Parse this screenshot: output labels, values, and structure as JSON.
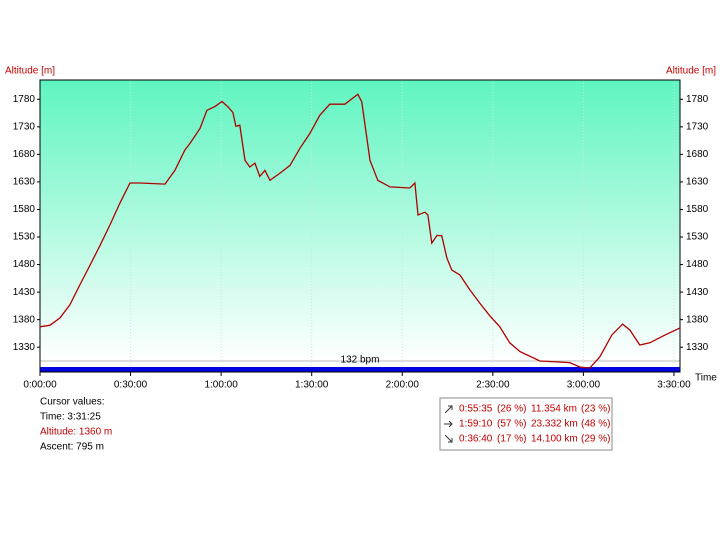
{
  "chart_data": {
    "type": "line",
    "y_label": "Altitude [m]",
    "x_label": "Time",
    "hr_label": "132 bpm",
    "color": "#b00000",
    "grid": true,
    "x": [
      0,
      3.3,
      6.6,
      9.9,
      13.2,
      16.6,
      19.9,
      23.2,
      26.5,
      29.8,
      33.1,
      41.4,
      44.7,
      48,
      49.7,
      53,
      55.3,
      58,
      60.3,
      62.3,
      63.9,
      64.9,
      66.2,
      67.9,
      69.5,
      71.2,
      72.8,
      74.5,
      76.2,
      79.5,
      82.8,
      86.1,
      89.4,
      92.7,
      96,
      101,
      104.3,
      105.3,
      106.6,
      109.3,
      111.9,
      115.9,
      122.5,
      124.2,
      125.2,
      127.5,
      128.5,
      129.8,
      131.5,
      133.1,
      134.8,
      136.4,
      139.1,
      142.4,
      145.7,
      149,
      152.3,
      155.6,
      159,
      165.6,
      175.5,
      178.8,
      182.1,
      185.4,
      189.4,
      193,
      195.4,
      198.7,
      202,
      207,
      212
    ],
    "values": [
      1367,
      1370,
      1383,
      1407,
      1443,
      1479,
      1515,
      1552,
      1592,
      1628,
      1628,
      1626,
      1651,
      1688,
      1700,
      1727,
      1760,
      1767,
      1776,
      1766,
      1756,
      1731,
      1733,
      1669,
      1657,
      1664,
      1640,
      1651,
      1633,
      1646,
      1660,
      1691,
      1718,
      1751,
      1771,
      1771,
      1785,
      1789,
      1775,
      1669,
      1633,
      1621,
      1619,
      1628,
      1570,
      1575,
      1570,
      1519,
      1533,
      1532,
      1492,
      1470,
      1461,
      1434,
      1410,
      1387,
      1367,
      1338,
      1322,
      1305,
      1302,
      1294,
      1292,
      1312,
      1352,
      1372,
      1361,
      1334,
      1338,
      1352,
      1365
    ],
    "xlim": [
      0,
      212
    ],
    "xticks": [
      {
        "value": 0,
        "label": "0:00:00"
      },
      {
        "value": 30,
        "label": "0:30:00"
      },
      {
        "value": 60,
        "label": "1:00:00"
      },
      {
        "value": 90,
        "label": "1:30:00"
      },
      {
        "value": 120,
        "label": "2:00:00"
      },
      {
        "value": 150,
        "label": "2:30:00"
      },
      {
        "value": 180,
        "label": "3:00:00"
      },
      {
        "value": 210,
        "label": "3:30:00"
      }
    ],
    "ylim": [
      1285,
      1815
    ],
    "yticks": [
      1330,
      1380,
      1430,
      1480,
      1530,
      1580,
      1630,
      1680,
      1730,
      1780
    ]
  },
  "cursor_panel": {
    "title": "Cursor values:",
    "time": "Time: 3:31:25",
    "altitude": "Altitude: 1360 m",
    "ascent": "Ascent: 795 m"
  },
  "stats": {
    "rows": [
      [
        "0:55:35",
        "(26 %)",
        "11.354 km",
        "(23 %)"
      ],
      [
        "1:59:10",
        "(57 %)",
        "23.332 km",
        "(48 %)"
      ],
      [
        "0:36:40",
        "(17 %)",
        "14.100 km",
        "(29 %)"
      ]
    ]
  }
}
